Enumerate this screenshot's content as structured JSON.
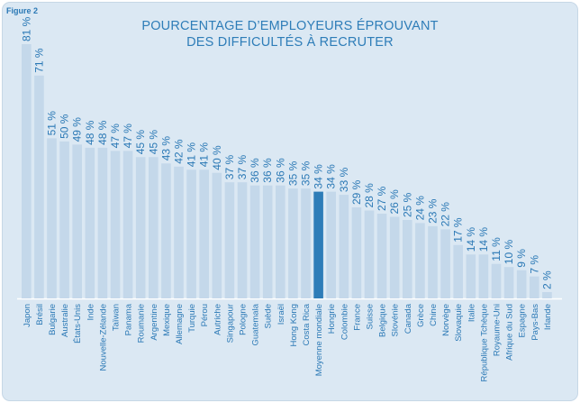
{
  "figure_label": "Figure 2",
  "colors": {
    "bar": "#c4d8ea",
    "highlight": "#2e7db8",
    "label": "#2a78b5",
    "panel": "#dbe8f3"
  },
  "chart_data": {
    "type": "bar",
    "title": [
      "POURCENTAGE D’EMPLOYEURS ÉPROUVANT",
      "DES DIFFICULTÉS À RECRUTER"
    ],
    "xlabel": "",
    "ylabel": "",
    "ylim": [
      0,
      81
    ],
    "grid": false,
    "legend": "none",
    "highlight_category": "Moyenne mondiale",
    "categories": [
      "Japon",
      "Brésil",
      "Bulgarie",
      "Australie",
      "États-Unis",
      "Inde",
      "Nouvelle-Zélande",
      "Taïwan",
      "Panama",
      "Roumanie",
      "Argentine",
      "Mexique",
      "Allemagne",
      "Turquie",
      "Pérou",
      "Autriche",
      "Singapour",
      "Pologne",
      "Guatemala",
      "Suède",
      "Israël",
      "Hong Kong",
      "Costa Rica",
      "Moyenne mondiale",
      "Hongrie",
      "Colombie",
      "France",
      "Suisse",
      "Belgique",
      "Slovénie",
      "Canada",
      "Grèce",
      "Chine",
      "Norvège",
      "Slovaquie",
      "Italie",
      "République Tchèque",
      "Royaume-Uni",
      "Afrique du Sud",
      "Espagne",
      "Pays-Bas",
      "Irlande"
    ],
    "values": [
      81,
      71,
      51,
      50,
      49,
      48,
      48,
      47,
      47,
      45,
      45,
      43,
      42,
      41,
      41,
      40,
      37,
      37,
      36,
      36,
      36,
      35,
      35,
      34,
      34,
      33,
      29,
      28,
      27,
      26,
      25,
      24,
      23,
      22,
      17,
      14,
      14,
      11,
      10,
      9,
      7,
      2
    ],
    "value_labels": [
      "81 %",
      "71 %",
      "51 %",
      "50 %",
      "49 %",
      "48 %",
      "48 %",
      "47 %",
      "47 %",
      "45 %",
      "45 %",
      "43 %",
      "42 %",
      "41 %",
      "41 %",
      "40 %",
      "37 %",
      "37 %",
      "36 %",
      "36 %",
      "36 %",
      "35 %",
      "35 %",
      "34 %",
      "34 %",
      "33 %",
      "29 %",
      "28 %",
      "27 %",
      "26 %",
      "25 %",
      "24 %",
      "23 %",
      "22 %",
      "17 %",
      "14 %",
      "14 %",
      "11 %",
      "10 %",
      "9 %",
      "7 %",
      "2 %"
    ]
  }
}
